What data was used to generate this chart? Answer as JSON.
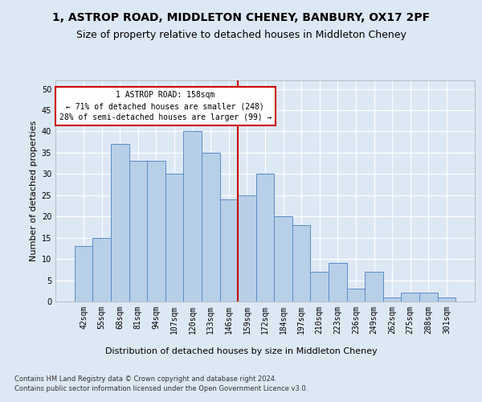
{
  "title": "1, ASTROP ROAD, MIDDLETON CHENEY, BANBURY, OX17 2PF",
  "subtitle": "Size of property relative to detached houses in Middleton Cheney",
  "xlabel": "Distribution of detached houses by size in Middleton Cheney",
  "ylabel": "Number of detached properties",
  "categories": [
    "42sqm",
    "55sqm",
    "68sqm",
    "81sqm",
    "94sqm",
    "107sqm",
    "120sqm",
    "133sqm",
    "146sqm",
    "159sqm",
    "172sqm",
    "184sqm",
    "197sqm",
    "210sqm",
    "223sqm",
    "236sqm",
    "249sqm",
    "262sqm",
    "275sqm",
    "288sqm",
    "301sqm"
  ],
  "values": [
    13,
    15,
    37,
    33,
    33,
    30,
    40,
    35,
    24,
    25,
    30,
    20,
    18,
    7,
    9,
    3,
    7,
    1,
    2,
    2,
    1
  ],
  "bar_color": "#b8cfe8",
  "bar_edge_color": "#5b8cc8",
  "vline_x_index": 8.5,
  "vline_color": "#cc0000",
  "annotation_line1": "1 ASTROP ROAD: 158sqm",
  "annotation_line2": "← 71% of detached houses are smaller (248)",
  "annotation_line3": "28% of semi-detached houses are larger (99) →",
  "annotation_box_color": "#cc0000",
  "ylim": [
    0,
    52
  ],
  "yticks": [
    0,
    5,
    10,
    15,
    20,
    25,
    30,
    35,
    40,
    45,
    50
  ],
  "footer1": "Contains HM Land Registry data © Crown copyright and database right 2024.",
  "footer2": "Contains public sector information licensed under the Open Government Licence v3.0.",
  "bg_color": "#dde8f5",
  "plot_bg_color": "#dde8f5",
  "grid_color": "#ffffff",
  "title_fontsize": 10,
  "subtitle_fontsize": 9,
  "axis_label_fontsize": 8,
  "tick_fontsize": 7,
  "ylabel_fontsize": 8
}
